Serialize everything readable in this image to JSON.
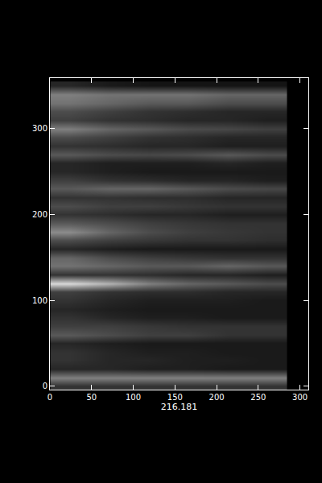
{
  "chart_data": {
    "type": "heatmap",
    "x_label": "216.181",
    "x": [
      24,
      71,
      119,
      166,
      214,
      261
    ],
    "y": [
      0,
      10,
      20,
      30,
      40,
      50,
      60,
      70,
      80,
      90,
      100,
      110,
      120,
      130,
      140,
      150,
      160,
      170,
      180,
      190,
      200,
      210,
      220,
      230,
      240,
      250,
      260,
      270,
      280,
      290,
      300,
      310,
      320,
      330,
      340,
      350
    ],
    "z": [
      [
        0.2,
        0.2,
        0.2,
        0.2,
        0.2,
        0.2
      ],
      [
        0.5,
        0.5,
        0.5,
        0.5,
        0.5,
        0.5
      ],
      [
        0.15,
        0.15,
        0.12,
        0.12,
        0.1,
        0.1
      ],
      [
        0.2,
        0.15,
        0.15,
        0.12,
        0.12,
        0.1
      ],
      [
        0.2,
        0.15,
        0.12,
        0.12,
        0.1,
        0.1
      ],
      [
        0.15,
        0.12,
        0.1,
        0.1,
        0.1,
        0.1
      ],
      [
        0.35,
        0.3,
        0.25,
        0.25,
        0.2,
        0.2
      ],
      [
        0.25,
        0.25,
        0.22,
        0.2,
        0.2,
        0.2
      ],
      [
        0.2,
        0.15,
        0.12,
        0.12,
        0.1,
        0.1
      ],
      [
        0.15,
        0.12,
        0.1,
        0.1,
        0.1,
        0.1
      ],
      [
        0.2,
        0.15,
        0.12,
        0.12,
        0.12,
        0.1
      ],
      [
        0.25,
        0.2,
        0.18,
        0.18,
        0.15,
        0.15
      ],
      [
        0.85,
        0.7,
        0.5,
        0.4,
        0.35,
        0.3
      ],
      [
        0.2,
        0.2,
        0.18,
        0.15,
        0.15,
        0.12
      ],
      [
        0.45,
        0.4,
        0.35,
        0.35,
        0.4,
        0.35
      ],
      [
        0.4,
        0.3,
        0.25,
        0.22,
        0.2,
        0.2
      ],
      [
        0.15,
        0.12,
        0.1,
        0.1,
        0.1,
        0.1
      ],
      [
        0.3,
        0.25,
        0.22,
        0.2,
        0.2,
        0.18
      ],
      [
        0.55,
        0.4,
        0.3,
        0.25,
        0.22,
        0.2
      ],
      [
        0.35,
        0.3,
        0.25,
        0.22,
        0.2,
        0.2
      ],
      [
        0.2,
        0.18,
        0.15,
        0.15,
        0.12,
        0.12
      ],
      [
        0.3,
        0.25,
        0.25,
        0.22,
        0.2,
        0.2
      ],
      [
        0.2,
        0.2,
        0.18,
        0.18,
        0.15,
        0.15
      ],
      [
        0.35,
        0.4,
        0.4,
        0.35,
        0.3,
        0.28
      ],
      [
        0.25,
        0.2,
        0.18,
        0.15,
        0.15,
        0.12
      ],
      [
        0.15,
        0.12,
        0.1,
        0.1,
        0.1,
        0.1
      ],
      [
        0.15,
        0.12,
        0.12,
        0.12,
        0.15,
        0.12
      ],
      [
        0.35,
        0.3,
        0.28,
        0.3,
        0.35,
        0.3
      ],
      [
        0.2,
        0.18,
        0.15,
        0.15,
        0.12,
        0.12
      ],
      [
        0.3,
        0.25,
        0.2,
        0.18,
        0.15,
        0.15
      ],
      [
        0.5,
        0.4,
        0.35,
        0.3,
        0.28,
        0.25
      ],
      [
        0.25,
        0.2,
        0.18,
        0.15,
        0.15,
        0.12
      ],
      [
        0.3,
        0.25,
        0.2,
        0.18,
        0.15,
        0.15
      ],
      [
        0.45,
        0.4,
        0.35,
        0.35,
        0.3,
        0.3
      ],
      [
        0.5,
        0.45,
        0.45,
        0.45,
        0.4,
        0.4
      ],
      [
        0.15,
        0.1,
        0.08,
        0.08,
        0.08,
        0.08
      ]
    ],
    "zlim": [
      0,
      1
    ],
    "xlim": [
      0,
      310
    ],
    "ylim": [
      -4,
      359
    ],
    "xticks": [
      0,
      50,
      100,
      150,
      200,
      250,
      300
    ],
    "yticks": [
      0,
      100,
      200,
      300
    ],
    "grid": false
  }
}
